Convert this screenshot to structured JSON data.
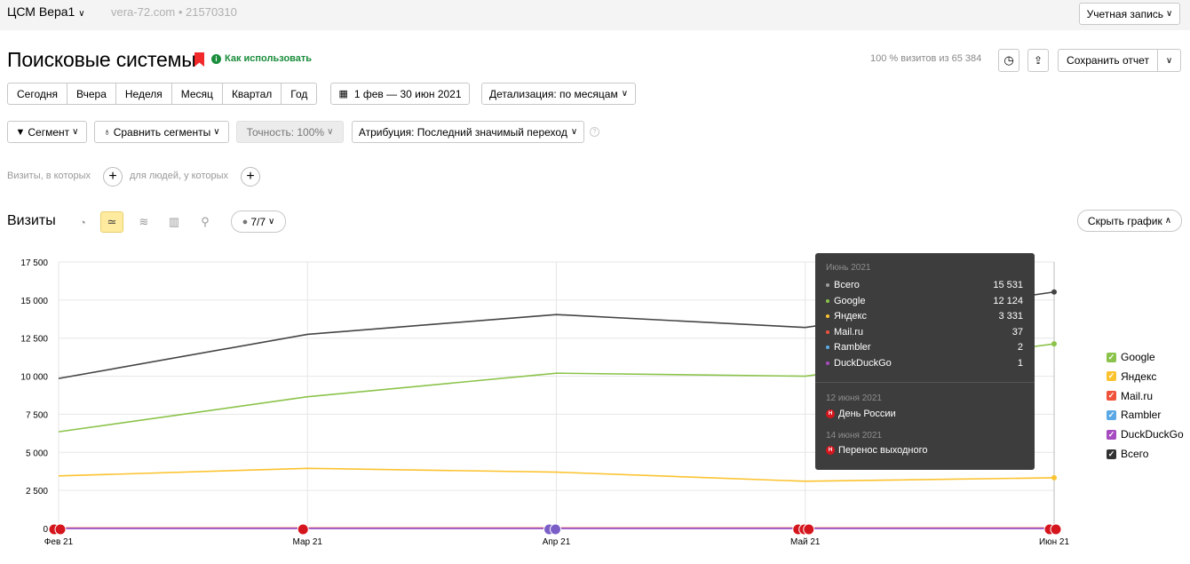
{
  "header": {
    "counter_name": "ЦСМ Вера1",
    "counter_sub": "vera-72.com • 21570310",
    "account_label": "Учетная запись"
  },
  "report": {
    "title": "Поисковые системы",
    "howto": "Как использовать",
    "visits_share": "100 % визитов из 65 384",
    "save_label": "Сохранить отчет"
  },
  "periods": [
    "Сегодня",
    "Вчера",
    "Неделя",
    "Месяц",
    "Квартал",
    "Год"
  ],
  "date_range": "1 фев — 30 июн 2021",
  "detail": "Детализация: по месяцам",
  "filters": {
    "segment": "Сегмент",
    "compare": "Сравнить сегменты",
    "accuracy": "Точность: 100%",
    "attribution": "Атрибуция: Последний значимый переход"
  },
  "conditions": {
    "visits_label": "Визиты, в которых",
    "people_label": "для людей, у которых"
  },
  "chart_toolbar": {
    "title": "Визиты",
    "series_count": "7/7",
    "hide_chart": "Скрыть график"
  },
  "legend": [
    {
      "name": "Google",
      "color": "#8bc34a"
    },
    {
      "name": "Яндекс",
      "color": "#fcc330"
    },
    {
      "name": "Mail.ru",
      "color": "#f0533b"
    },
    {
      "name": "Rambler",
      "color": "#5aa9e6"
    },
    {
      "name": "DuckDuckGo",
      "color": "#a64bc0"
    },
    {
      "name": "Всего",
      "color": "#333333"
    }
  ],
  "tooltip": {
    "period": "Июнь 2021",
    "rows": [
      {
        "name": "Всего",
        "value": "15 531",
        "color": "#9e9e9e"
      },
      {
        "name": "Google",
        "value": "12 124",
        "color": "#8bc34a"
      },
      {
        "name": "Яндекс",
        "value": "3 331",
        "color": "#fcc330"
      },
      {
        "name": "Mail.ru",
        "value": "37",
        "color": "#f0533b"
      },
      {
        "name": "Rambler",
        "value": "2",
        "color": "#5aa9e6"
      },
      {
        "name": "DuckDuckGo",
        "value": "1",
        "color": "#a64bc0"
      }
    ],
    "holidays": [
      {
        "date": "12 июня 2021",
        "name": "День России"
      },
      {
        "date": "14 июня 2021",
        "name": "Перенос выходного"
      }
    ]
  },
  "chart_data": {
    "type": "line",
    "categories": [
      "Фев 21",
      "Мар 21",
      "Апр 21",
      "Май 21",
      "Июн 21"
    ],
    "ylim": [
      0,
      17500
    ],
    "yticks": [
      "0",
      "2 500",
      "5 000",
      "7 500",
      "10 000",
      "12 500",
      "15 000",
      "17 500"
    ],
    "series": [
      {
        "name": "Всего",
        "color": "#444444",
        "values": [
          9850,
          12750,
          14050,
          13200,
          15531
        ]
      },
      {
        "name": "Google",
        "color": "#8bc34a",
        "values": [
          6350,
          8650,
          10200,
          10000,
          12124
        ]
      },
      {
        "name": "Яндекс",
        "color": "#fcc330",
        "values": [
          3450,
          3950,
          3700,
          3100,
          3331
        ]
      },
      {
        "name": "Mail.ru",
        "color": "#f0533b",
        "values": [
          30,
          35,
          30,
          35,
          37
        ]
      },
      {
        "name": "Rambler",
        "color": "#5aa9e6",
        "values": [
          2,
          2,
          2,
          2,
          2
        ]
      },
      {
        "name": "DuckDuckGo",
        "color": "#a64bc0",
        "values": [
          1,
          1,
          1,
          1,
          1
        ]
      }
    ],
    "grid": true
  }
}
